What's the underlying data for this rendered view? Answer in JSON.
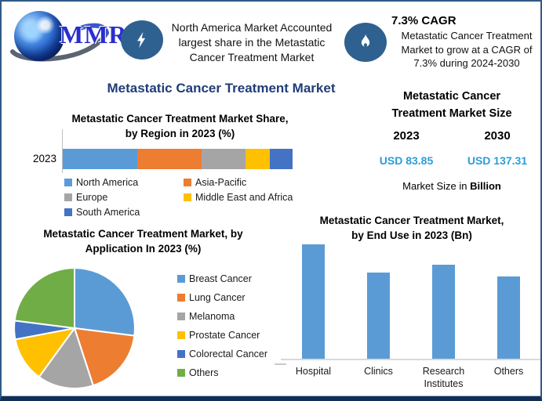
{
  "brand": {
    "logo_text": "MMR"
  },
  "header": {
    "highlight_banner": {
      "lines": [
        "North America Market Accounted",
        "largest share in the Metastatic",
        "Cancer Treatment Market"
      ]
    },
    "cagr_banner": {
      "heading": "7.3% CAGR",
      "lines": [
        "Metastatic Cancer Treatment",
        "Market to grow at a CAGR of",
        "7.3% during 2024-2030"
      ]
    }
  },
  "main_title": "Metastatic Cancer Treatment Market",
  "market_size_panel": {
    "title": "Metastatic Cancer\nTreatment Market Size",
    "year_left": "2023",
    "year_right": "2030",
    "value_left": "USD 83.85",
    "value_right": "USD 137.31",
    "footnote_prefix": "Market Size in ",
    "footnote_bold": "Billion"
  },
  "colors": {
    "title_navy": "#203d78",
    "value_blue": "#2b9cd8",
    "icon_blue": "#2e618f"
  },
  "chart_data": [
    {
      "id": "region_share",
      "type": "bar",
      "subtype": "horizontal-stacked",
      "title": "Metastatic Cancer Treatment Market Share,\nby Region in 2023 (%)",
      "categories": [
        "2023"
      ],
      "series": [
        {
          "name": "North America",
          "values": [
            32.5
          ],
          "color": "#5B9BD5"
        },
        {
          "name": "Asia-Pacific",
          "values": [
            28
          ],
          "color": "#ED7D31"
        },
        {
          "name": "Europe",
          "values": [
            19
          ],
          "color": "#A5A5A5"
        },
        {
          "name": "Middle East and Africa",
          "values": [
            10.5
          ],
          "color": "#FFC000"
        },
        {
          "name": "South America",
          "values": [
            10
          ],
          "color": "#4472C4"
        }
      ],
      "legend_position": "bottom",
      "note": "segment percentages estimated from bar widths; no data labels shown"
    },
    {
      "id": "application_pie",
      "type": "pie",
      "title": "Metastatic Cancer Treatment Market, by\nApplication In 2023 (%)",
      "labels": [
        "Breast Cancer",
        "Lung Cancer",
        "Melanoma",
        "Prostate Cancer",
        "Colorectal Cancer",
        "Others"
      ],
      "values": [
        27,
        18,
        15,
        12,
        5,
        23
      ],
      "colors": [
        "#5B9BD5",
        "#ED7D31",
        "#A5A5A5",
        "#FFC000",
        "#4472C4",
        "#70AD47"
      ],
      "legend_position": "right",
      "note": "slice percentages estimated from angles; no data labels shown"
    },
    {
      "id": "enduse_bar",
      "type": "bar",
      "title": "Metastatic Cancer Treatment Market,\nby End Use in 2023 (Bn)",
      "categories": [
        "Hospital",
        "Clinics",
        "Research\nInstitutes",
        "Others"
      ],
      "values": [
        100,
        75,
        82,
        72
      ],
      "color": "#5B9BD5",
      "ylim": [
        0,
        100
      ],
      "note": "relative bar heights (max = 100); no value axis shown"
    }
  ]
}
